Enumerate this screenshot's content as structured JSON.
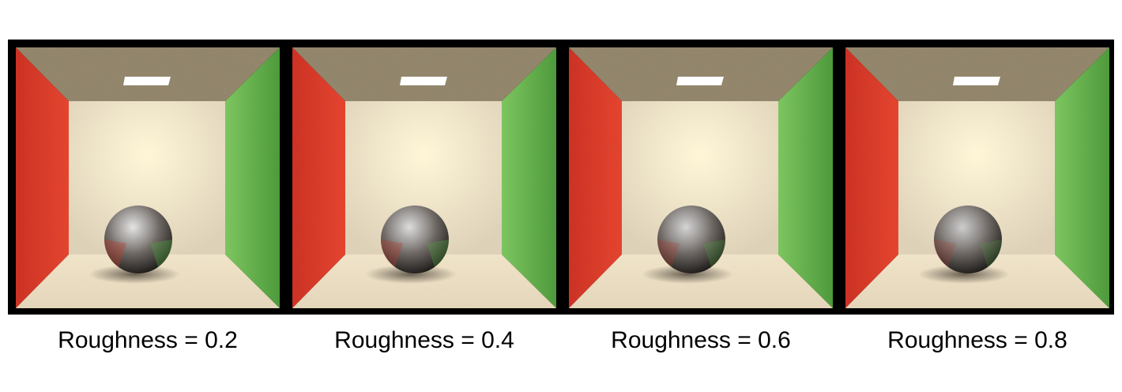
{
  "panels": [
    {
      "caption": "Roughness = 0.2",
      "roughness": 0.2
    },
    {
      "caption": "Roughness = 0.4",
      "roughness": 0.4
    },
    {
      "caption": "Roughness = 0.6",
      "roughness": 0.6
    },
    {
      "caption": "Roughness = 0.8",
      "roughness": 0.8
    }
  ],
  "colors": {
    "frame": "#000000",
    "left_wall": "#e2412c",
    "right_wall": "#5aa843",
    "back_wall": "#efe3c9",
    "ceiling": "#8c7f66",
    "floor": "#e9dcc0",
    "light": "#ffffff"
  }
}
